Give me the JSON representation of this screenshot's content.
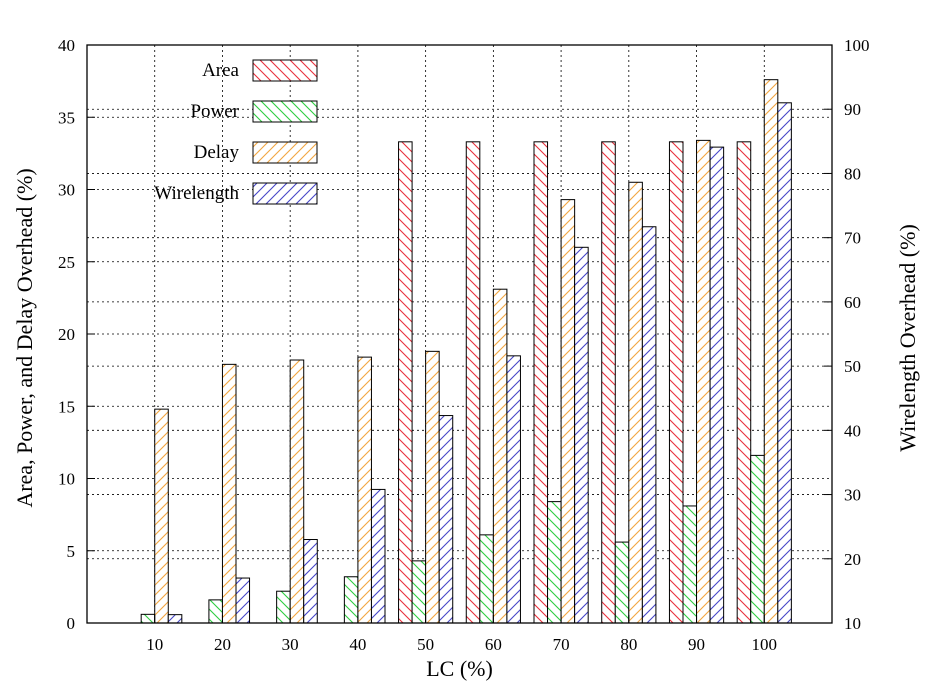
{
  "chart_data": {
    "type": "bar",
    "xlabel": "LC (%)",
    "ylabel": "Area, Power, and Delay Overhead (%)",
    "y2label": "Wirelength Overhead (%)",
    "categories": [
      "10",
      "20",
      "30",
      "40",
      "50",
      "60",
      "70",
      "80",
      "90",
      "100"
    ],
    "ylim": [
      0,
      40
    ],
    "y2lim": [
      10,
      100
    ],
    "yticks": [
      "0",
      "5",
      "10",
      "15",
      "20",
      "25",
      "30",
      "35",
      "40"
    ],
    "y2ticks": [
      "10",
      "20",
      "30",
      "40",
      "50",
      "60",
      "70",
      "80",
      "90",
      "100"
    ],
    "grid": true,
    "legend_position": "top-left",
    "series": [
      {
        "name": "Area",
        "axis": "left",
        "color": "#e8303c",
        "pattern": "backslash",
        "values": [
          0,
          0,
          0,
          0,
          33.3,
          33.3,
          33.3,
          33.3,
          33.3,
          33.3
        ]
      },
      {
        "name": "Power",
        "axis": "left",
        "color": "#2ecc40",
        "pattern": "backslash",
        "values": [
          0.6,
          1.6,
          2.2,
          3.2,
          4.3,
          6.1,
          8.4,
          5.6,
          8.1,
          11.6
        ]
      },
      {
        "name": "Delay",
        "axis": "left",
        "color": "#f2a640",
        "pattern": "slash",
        "values": [
          14.8,
          17.9,
          18.2,
          18.4,
          18.8,
          23.1,
          29.3,
          30.5,
          33.4,
          37.6
        ]
      },
      {
        "name": "Wirelength",
        "axis": "right",
        "color": "#4646c8",
        "pattern": "slash",
        "values": [
          11.3,
          17.0,
          23.0,
          30.8,
          42.3,
          51.6,
          68.5,
          71.7,
          84.1,
          91.0
        ]
      }
    ]
  }
}
